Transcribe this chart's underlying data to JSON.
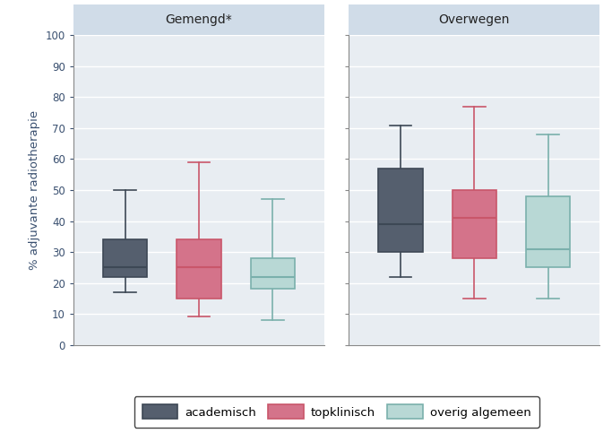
{
  "groups": [
    "Gemengd*",
    "Overwegen"
  ],
  "categories": [
    "academisch",
    "topklinisch",
    "overig algemeen"
  ],
  "box_face_colors": [
    "#555f6e",
    "#d4738a",
    "#b8d8d5"
  ],
  "box_edge_colors": [
    "#3d4855",
    "#c9566a",
    "#7ab0ac"
  ],
  "median_colors": [
    "#3d4855",
    "#c9566a",
    "#7ab0ac"
  ],
  "whisker_colors": [
    "#3d4855",
    "#c9566a",
    "#7ab0ac"
  ],
  "box_data": {
    "Gemengd*": [
      {
        "whislo": 17,
        "q1": 22,
        "med": 25,
        "q3": 34,
        "whishi": 50
      },
      {
        "whislo": 9,
        "q1": 15,
        "med": 25,
        "q3": 34,
        "whishi": 59
      },
      {
        "whislo": 8,
        "q1": 18,
        "med": 22,
        "q3": 28,
        "whishi": 47
      }
    ],
    "Overwegen": [
      {
        "whislo": 22,
        "q1": 30,
        "med": 39,
        "q3": 57,
        "whishi": 71
      },
      {
        "whislo": 15,
        "q1": 28,
        "med": 41,
        "q3": 50,
        "whishi": 77
      },
      {
        "whislo": 15,
        "q1": 25,
        "med": 31,
        "q3": 48,
        "whishi": 68
      }
    ]
  },
  "ylabel": "% adjuvante radiotherapie",
  "ylim": [
    0,
    100
  ],
  "yticks": [
    0,
    10,
    20,
    30,
    40,
    50,
    60,
    70,
    80,
    90,
    100
  ],
  "background_color": "#ffffff",
  "panel_bg_color": "#e8edf2",
  "grid_color": "#ffffff",
  "title_bg_color": "#d0dce8",
  "title_text_color": "#222222",
  "axis_label_color": "#3a5070",
  "tick_label_color": "#3a5070",
  "spine_color": "#888888",
  "box_width": 0.6,
  "legend_border_color": "#444444"
}
